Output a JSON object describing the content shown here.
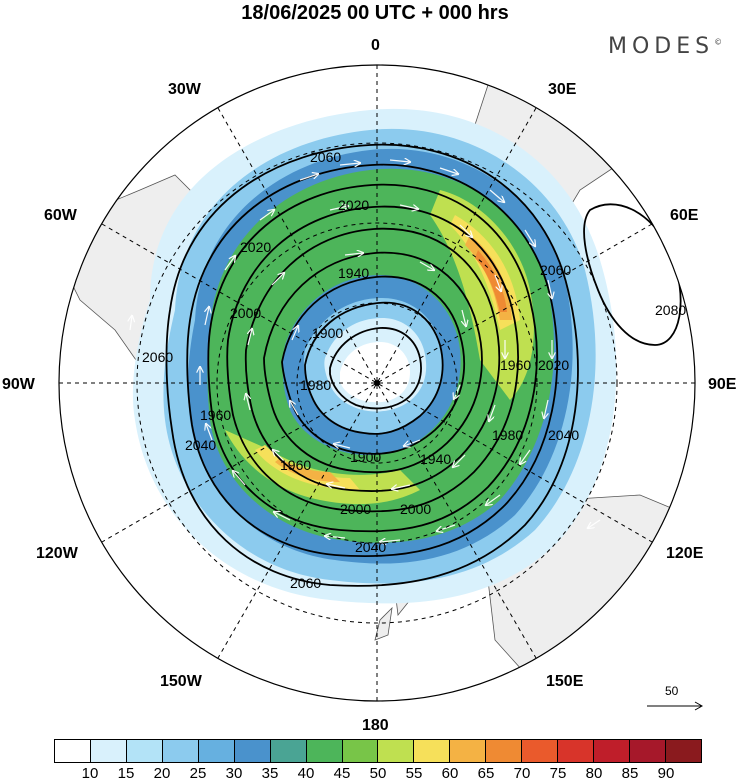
{
  "title": "18/06/2025  00 UTC  + 000 hrs",
  "brand": "MODES",
  "brand_mark": "©",
  "longitude_labels": {
    "n0": "0",
    "e30": "30E",
    "e60": "60E",
    "e90": "90E",
    "e120": "120E",
    "e150": "150E",
    "s180": "180",
    "w150": "150W",
    "w120": "120W",
    "w90": "90W",
    "w60": "60W",
    "w30": "30W"
  },
  "contour_labels": [
    "2060",
    "2020",
    "2020",
    "1940",
    "2000",
    "1900",
    "1980",
    "1960",
    "1960",
    "1900",
    "1940",
    "2000",
    "2000",
    "2040",
    "2060",
    "2040",
    "2060",
    "2060",
    "2080",
    "1980",
    "2020",
    "1960",
    "2040"
  ],
  "reference_vector": {
    "value": "50"
  },
  "colorbar": {
    "colors": [
      "#ffffff",
      "#d9f1fc",
      "#b3e3f7",
      "#8ccbee",
      "#66b0e0",
      "#4a92cc",
      "#4aa494",
      "#4db55a",
      "#78c548",
      "#bfe050",
      "#f6e05a",
      "#f4b244",
      "#ef8a33",
      "#ea5a2c",
      "#d8342a",
      "#bf1e2a",
      "#a6182a",
      "#8a1a1e"
    ],
    "labels": [
      "10",
      "15",
      "20",
      "25",
      "30",
      "35",
      "40",
      "45",
      "50",
      "55",
      "60",
      "65",
      "70",
      "75",
      "80",
      "85",
      "90"
    ]
  },
  "colors": {
    "coastline": "#555555",
    "land": "#eeeeee",
    "wind_arrows": "#ffffff",
    "contours": "#000000"
  }
}
